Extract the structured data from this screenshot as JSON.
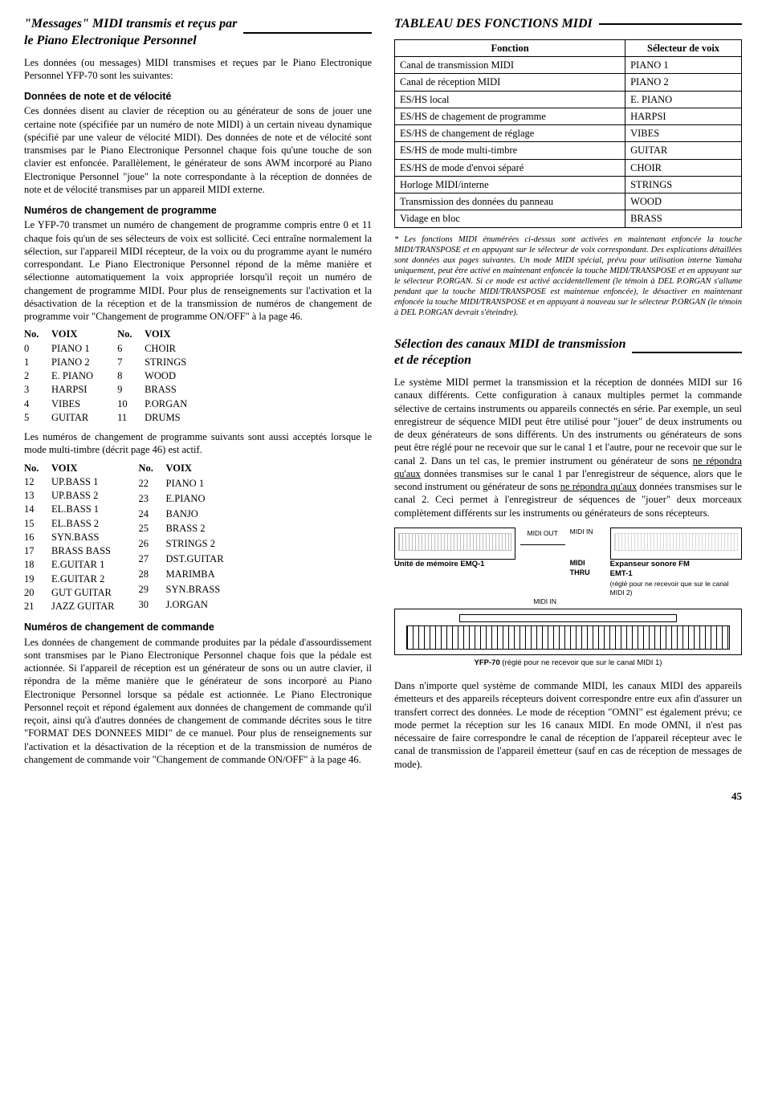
{
  "left": {
    "h1_line1": "\"Messages\" MIDI transmis et reçus par",
    "h1_line2": "le Piano Electronique Personnel",
    "intro": "Les données (ou messages) MIDI transmises et reçues par le Piano Electronique Personnel YFP-70 sont les suivantes:",
    "sub1": "Données de note et de vélocité",
    "p1": "Ces données disent au clavier de réception ou au générateur de sons de jouer une certaine note (spécifiée par un numéro de note MIDI) à un certain niveau dynamique (spécifié par une valeur de vélocité MIDI). Des données de note et de vélocité sont transmises par le Piano Electronique Personnel chaque fois qu'une touche de son clavier est enfoncée. Parallèlement, le générateur de sons AWM incorporé au Piano Electronique Personnel \"joue\" la note correspondante à la réception de données de note et de vélocité transmises par un appareil MIDI externe.",
    "sub2": "Numéros de changement de programme",
    "p2": "Le YFP-70 transmet un numéro de changement de programme compris entre 0 et 11 chaque fois qu'un de ses sélecteurs de voix est sollicité. Ceci entraîne normalement la sélection, sur l'appareil MIDI récepteur, de la voix ou du programme ayant le numéro correspondant. Le Piano Electronique Personnel répond de la même manière et sélectionne automatiquement la voix appropriée lorsqu'il reçoit un numéro de changement de programme MIDI. Pour plus de renseignements sur l'activation et la désactivation de la réception et de la transmission de numéros de changement de programme voir \"Changement de programme ON/OFF\" à la page 46.",
    "v1_hdr_no": "No.",
    "v1_hdr_voix": "VOIX",
    "v1_left": [
      [
        "0",
        "PIANO 1"
      ],
      [
        "1",
        "PIANO 2"
      ],
      [
        "2",
        "E. PIANO"
      ],
      [
        "3",
        "HARPSI"
      ],
      [
        "4",
        "VIBES"
      ],
      [
        "5",
        "GUITAR"
      ]
    ],
    "v1_right": [
      [
        "6",
        "CHOIR"
      ],
      [
        "7",
        "STRINGS"
      ],
      [
        "8",
        "WOOD"
      ],
      [
        "9",
        "BRASS"
      ],
      [
        "10",
        "P.ORGAN"
      ],
      [
        "11",
        "DRUMS"
      ]
    ],
    "p3": "Les numéros de changement de programme suivants sont aussi acceptés lorsque le mode multi-timbre (décrit page 46) est actif.",
    "v2_left": [
      [
        "12",
        "UP.BASS 1"
      ],
      [
        "13",
        "UP.BASS 2"
      ],
      [
        "14",
        "EL.BASS 1"
      ],
      [
        "15",
        "EL.BASS 2"
      ],
      [
        "16",
        "SYN.BASS"
      ],
      [
        "17",
        "BRASS BASS"
      ],
      [
        "18",
        "E.GUITAR 1"
      ],
      [
        "19",
        "E.GUITAR 2"
      ],
      [
        "20",
        "GUT GUITAR"
      ],
      [
        "21",
        "JAZZ GUITAR"
      ]
    ],
    "v2_right": [
      [
        "22",
        "PIANO 1"
      ],
      [
        "23",
        "E.PIANO"
      ],
      [
        "24",
        "BANJO"
      ],
      [
        "25",
        "BRASS 2"
      ],
      [
        "26",
        "STRINGS 2"
      ],
      [
        "27",
        "DST.GUITAR"
      ],
      [
        "28",
        "MARIMBA"
      ],
      [
        "29",
        "SYN.BRASS"
      ],
      [
        "30",
        "J.ORGAN"
      ]
    ],
    "sub3": "Numéros de changement de commande",
    "p4": "Les données de changement de commande produites par la pédale d'assourdissement sont transmises par le Piano Electronique Personnel chaque fois que la pédale est actionnée. Si l'appareil de réception est un générateur de sons ou un autre clavier, il répondra de la même manière que le générateur de sons incorporé au Piano Electronique Personnel lorsque sa pédale est actionnée. Le Piano Electronique Personnel reçoit et répond également aux données de changement de commande qu'il reçoit, ainsi qu'à d'autres données de changement de commande décrites sous le titre \"FORMAT DES DONNEES MIDI\" de ce manuel. Pour plus de renseignements sur l'activation et la désactivation de la réception et de la transmission de numéros de changement de commande voir \"Changement de commande ON/OFF\" à la page 46."
  },
  "right": {
    "h1": "TABLEAU DES FONCTIONS MIDI",
    "th1": "Fonction",
    "th2": "Sélecteur de voix",
    "rows": [
      [
        "Canal de transmission MIDI",
        "PIANO 1"
      ],
      [
        "Canal de réception MIDI",
        "PIANO 2"
      ],
      [
        "ES/HS local",
        "E. PIANO"
      ],
      [
        "ES/HS de chagement de programme",
        "HARPSI"
      ],
      [
        "ES/HS de changement de réglage",
        "VIBES"
      ],
      [
        "ES/HS de mode multi-timbre",
        "GUITAR"
      ],
      [
        "ES/HS de mode d'envoi séparé",
        "CHOIR"
      ],
      [
        "Horloge MIDI/interne",
        "STRINGS"
      ],
      [
        "Transmission des données du panneau",
        "WOOD"
      ],
      [
        "Vidage en bloc",
        "BRASS"
      ]
    ],
    "footnote": "* Les fonctions MIDI énumérées ci-dessus sont activées en maintenant enfoncée la touche MIDI/TRANSPOSE et en appuyant sur le sélecteur de voix correspondant. Des explications détaillées sont données aux pages suivantes. Un mode MIDI spécial, prévu pour utilisation interne Yamaha uniquement, peut être activé en maintenant enfoncée la touche MIDI/TRANSPOSE et en appuyant sur le sélecteur P.ORGAN. Si ce mode est activé accidentellement (le témoin à DEL P.ORGAN s'allume pendant que la touche MIDI/TRANSPOSE est maintenue enfoncée), le désactiver en maintenant enfoncée la touche MIDI/TRANSPOSE et en appuyant à nouveau sur le sélecteur P.ORGAN (le témoin à DEL P.ORGAN devrait s'éteindre).",
    "h2_line1": "Sélection des canaux MIDI de transmission",
    "h2_line2": "et de réception",
    "p1a": "Le système MIDI permet la transmission et la réception de données MIDI sur 16 canaux différents. Cette configuration à canaux multiples permet la commande sélective de certains instruments ou appareils connectés en série. Par exemple, un seul enregistreur de séquence MIDI peut être utilisé pour \"jouer\" de deux instruments ou de deux générateurs de sons différents. Un des instruments ou générateurs de sons peut être réglé pour ne recevoir que sur le canal 1 et l'autre, pour ne recevoir que sur le canal 2. Dans un tel cas, le premier instrument ou générateur de sons ",
    "p1u1": "ne répondra qu'aux",
    "p1b": " données transmises sur le canal 1 par l'enregistreur de séquence, alors que le second instrument ou générateur de sons ",
    "p1u2": "ne répondra qu'aux",
    "p1c": " données transmises sur le canal 2. Ceci permet à l'enregistreur de séquences de \"jouer\" deux morceaux complètement différents sur les instruments ou générateurs de sons récepteurs.",
    "diag": {
      "midi_out": "MIDI OUT",
      "midi_in": "MIDI IN",
      "midi_thru": "MIDI THRU",
      "dev1": "Unité de mémoire EMQ-1",
      "dev2a": "Expanseur sonore FM",
      "dev2b": "EMT-1",
      "dev2c": "(réglé pour ne recevoir que sur le canal MIDI 2)",
      "caption": "YFP-70 (réglé pour ne recevoir que sur le canal MIDI 1)"
    },
    "p2": "Dans n'importe quel système de commande MIDI, les canaux MIDI des appareils émetteurs et des appareils récepteurs doivent correspondre entre eux afin d'assurer un transfert correct des données. Le mode de réception \"OMNI\" est également prévu; ce mode permet la réception sur les 16 canaux MIDI. En mode OMNI, il n'est pas nécessaire de faire correspondre le canal de réception de l'appareil récepteur avec le canal de transmission de l'appareil émetteur (sauf en cas de réception de messages de mode)."
  },
  "page_number": "45"
}
